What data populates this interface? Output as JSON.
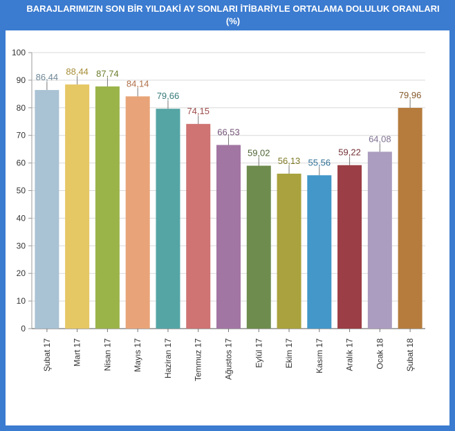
{
  "chart_data": {
    "type": "bar",
    "title": "BARAJLARIMIZIN SON BİR YILDAKİ AY SONLARI İTİBARİYLE ORTALAMA DOLULUK ORANLARI (%)",
    "categories": [
      "Şubat 17",
      "Mart 17",
      "Nisan 17",
      "Mayıs 17",
      "Haziran 17",
      "Temmuz 17",
      "Ağustos 17",
      "Eylül 17",
      "Ekim 17",
      "Kasım 17",
      "Aralık 17",
      "Ocak 18",
      "Şubat 18"
    ],
    "values": [
      86.44,
      88.44,
      87.74,
      84.14,
      79.66,
      74.15,
      66.53,
      59.02,
      56.13,
      55.56,
      59.22,
      64.08,
      79.96
    ],
    "value_labels": [
      "86,44",
      "88,44",
      "87,74",
      "84,14",
      "79,66",
      "74,15",
      "66,53",
      "59,02",
      "56,13",
      "55,56",
      "59,22",
      "64,08",
      "79,96"
    ],
    "ylim": [
      0,
      100
    ],
    "yticks": [
      "0",
      "10",
      "20",
      "30",
      "40",
      "50",
      "60",
      "70",
      "80",
      "90",
      "100"
    ],
    "grid": true,
    "colors": [
      "#a9c2d4",
      "#e5c763",
      "#9bb44a",
      "#e8a478",
      "#55a5a5",
      "#cf7373",
      "#a276a3",
      "#6e8c4e",
      "#a9a23e",
      "#4397c9",
      "#9b3e45",
      "#ab9dbf",
      "#b57c3e"
    ],
    "label_colors": [
      "#6f8797",
      "#a88d37",
      "#6b7d2d",
      "#b0704a",
      "#357878",
      "#9c4a4a",
      "#725276",
      "#4c6434",
      "#7f7a27",
      "#2f6f95",
      "#733036",
      "#7f7290",
      "#85592a"
    ]
  }
}
